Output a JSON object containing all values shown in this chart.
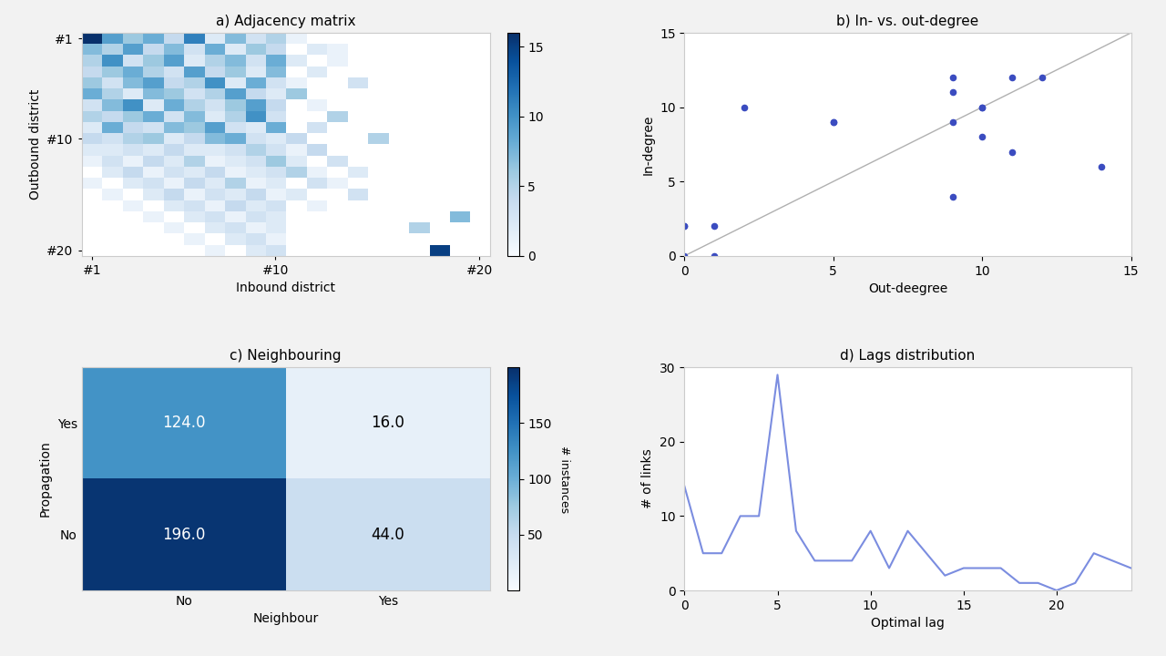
{
  "title_a": "a) Adjacency matrix",
  "title_b": "b) In- vs. out-degree",
  "title_c": "c) Neighbouring",
  "title_d": "d) Lags distribution",
  "adj_matrix": [
    [
      16,
      9,
      6,
      8,
      4,
      11,
      2,
      7,
      3,
      5,
      1,
      0,
      0,
      0,
      0,
      0,
      0,
      0,
      0,
      0
    ],
    [
      7,
      5,
      9,
      4,
      7,
      3,
      8,
      2,
      6,
      4,
      0,
      2,
      1,
      0,
      0,
      0,
      0,
      0,
      0,
      0
    ],
    [
      5,
      10,
      3,
      6,
      9,
      2,
      5,
      7,
      3,
      8,
      2,
      0,
      1,
      0,
      0,
      0,
      0,
      0,
      0,
      0
    ],
    [
      4,
      6,
      8,
      5,
      3,
      9,
      4,
      6,
      2,
      7,
      0,
      2,
      0,
      0,
      0,
      0,
      0,
      0,
      0,
      0
    ],
    [
      6,
      3,
      7,
      9,
      4,
      5,
      10,
      2,
      8,
      3,
      1,
      0,
      0,
      3,
      0,
      0,
      0,
      0,
      0,
      0
    ],
    [
      8,
      5,
      2,
      7,
      6,
      3,
      5,
      9,
      4,
      2,
      6,
      0,
      0,
      0,
      0,
      0,
      0,
      0,
      0,
      0
    ],
    [
      3,
      7,
      10,
      2,
      8,
      5,
      3,
      6,
      9,
      4,
      0,
      1,
      0,
      0,
      0,
      0,
      0,
      0,
      0,
      0
    ],
    [
      5,
      4,
      6,
      8,
      3,
      7,
      2,
      5,
      10,
      3,
      0,
      0,
      5,
      0,
      0,
      0,
      0,
      0,
      0,
      0
    ],
    [
      2,
      8,
      4,
      3,
      7,
      6,
      9,
      3,
      2,
      8,
      0,
      3,
      0,
      0,
      0,
      0,
      0,
      0,
      0,
      0
    ],
    [
      4,
      3,
      5,
      6,
      2,
      4,
      7,
      8,
      3,
      2,
      4,
      0,
      0,
      0,
      5,
      0,
      0,
      0,
      0,
      0
    ],
    [
      2,
      2,
      3,
      2,
      4,
      2,
      2,
      3,
      5,
      3,
      1,
      4,
      0,
      0,
      0,
      0,
      0,
      0,
      0,
      0
    ],
    [
      1,
      3,
      1,
      4,
      2,
      5,
      1,
      2,
      3,
      6,
      2,
      0,
      3,
      0,
      0,
      0,
      0,
      0,
      0,
      0
    ],
    [
      0,
      2,
      4,
      1,
      3,
      2,
      4,
      1,
      2,
      3,
      5,
      1,
      0,
      2,
      0,
      0,
      0,
      0,
      0,
      0
    ],
    [
      1,
      0,
      2,
      3,
      1,
      4,
      2,
      5,
      1,
      2,
      0,
      3,
      1,
      0,
      0,
      0,
      0,
      0,
      0,
      0
    ],
    [
      0,
      1,
      0,
      2,
      4,
      1,
      3,
      2,
      4,
      1,
      2,
      0,
      0,
      3,
      0,
      0,
      0,
      0,
      0,
      0
    ],
    [
      0,
      0,
      1,
      0,
      2,
      3,
      1,
      4,
      2,
      3,
      0,
      1,
      0,
      0,
      0,
      0,
      0,
      0,
      0,
      0
    ],
    [
      0,
      0,
      0,
      1,
      0,
      2,
      3,
      1,
      3,
      2,
      0,
      0,
      0,
      0,
      0,
      0,
      0,
      0,
      7,
      0
    ],
    [
      0,
      0,
      0,
      0,
      1,
      0,
      2,
      3,
      1,
      2,
      0,
      0,
      0,
      0,
      0,
      0,
      5,
      0,
      0,
      0
    ],
    [
      0,
      0,
      0,
      0,
      0,
      1,
      0,
      2,
      3,
      1,
      0,
      0,
      0,
      0,
      0,
      0,
      0,
      0,
      0,
      0
    ],
    [
      0,
      0,
      0,
      0,
      0,
      0,
      1,
      0,
      2,
      3,
      0,
      0,
      0,
      0,
      0,
      0,
      0,
      15,
      0,
      0
    ]
  ],
  "scatter_x": [
    0,
    0,
    0,
    1,
    1,
    2,
    5,
    5,
    9,
    9,
    9,
    9,
    10,
    10,
    10,
    11,
    11,
    12,
    14
  ],
  "scatter_y": [
    0,
    2,
    2,
    0,
    2,
    10,
    9,
    9,
    4,
    9,
    11,
    12,
    8,
    10,
    10,
    7,
    12,
    12,
    6
  ],
  "scatter_color": "#3b4cc0",
  "scatter_marker_size": 20,
  "diag_color": "#b0b0b0",
  "neighbour_matrix": [
    [
      124.0,
      16.0
    ],
    [
      196.0,
      44.0
    ]
  ],
  "neighbour_xticklabels": [
    "No",
    "Yes"
  ],
  "neighbour_xlabel": "Neighbour",
  "neighbour_ylabel": "Propagation",
  "neighbour_cbar_label": "# instances",
  "neighbour_cbar_ticks": [
    50,
    100,
    150
  ],
  "lags_x": [
    0,
    1,
    2,
    3,
    4,
    5,
    6,
    7,
    8,
    9,
    10,
    11,
    12,
    13,
    14,
    15,
    16,
    17,
    18,
    19,
    20,
    21,
    22,
    23,
    24
  ],
  "lags_y": [
    14,
    5,
    5,
    10,
    10,
    29,
    8,
    4,
    4,
    4,
    8,
    3,
    8,
    5,
    2,
    3,
    3,
    3,
    1,
    1,
    0,
    1,
    5,
    4,
    3
  ],
  "lags_color": "#7b8de0",
  "lags_xlabel": "Optimal lag",
  "lags_ylabel": "# of links",
  "bg_color": "#f2f2f2",
  "cmap_adj": "Blues",
  "cmap_neighbour": "Blues",
  "adj_xlabel": "Inbound district",
  "adj_ylabel": "Outbound district",
  "adj_xticks": [
    0,
    9,
    19
  ],
  "adj_xticklabels": [
    "#1",
    "#10",
    "#20"
  ],
  "adj_yticks": [
    0,
    9,
    19
  ],
  "adj_yticklabels": [
    "#1",
    "#10",
    "#20"
  ],
  "adj_cbar_ticks": [
    0,
    5,
    10,
    15
  ],
  "scatter_xlim": [
    0,
    15
  ],
  "scatter_ylim": [
    0,
    15
  ],
  "scatter_xlabel": "Out-deegree",
  "scatter_ylabel": "In-degree"
}
